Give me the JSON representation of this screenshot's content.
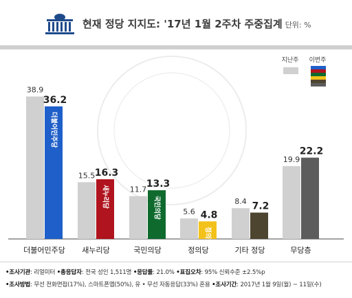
{
  "chart_data": {
    "type": "bar",
    "title": "현재 정당 지지도: '17년 1월 2주차 주중집계",
    "unit": "단위: %",
    "categories": [
      "더불어민주당",
      "새누리당",
      "국민의당",
      "정의당",
      "기타 정당",
      "무당층"
    ],
    "series": [
      {
        "name": "지난주",
        "values": [
          38.9,
          15.5,
          11.7,
          5.6,
          8.4,
          19.9
        ]
      },
      {
        "name": "이번주",
        "values": [
          36.2,
          16.3,
          13.3,
          4.8,
          7.2,
          22.2
        ]
      }
    ],
    "bar_labels": [
      "더불어민주당",
      "새누리당",
      "국민의당",
      "정의당",
      "",
      ""
    ],
    "colors": {
      "last_week": "#d0d0d0",
      "this_week": [
        "#1f5fc9",
        "#b0141e",
        "#0f6a2e",
        "#f3c21a",
        "#4e4530",
        "#5c5c5c"
      ],
      "axis": "#6a6a6a"
    },
    "legend_position": "top-right",
    "ylim": [
      0,
      45
    ]
  },
  "footer": {
    "line1": [
      {
        "key": "•조사기관",
        "val": ": 리얼미터 "
      },
      {
        "key": "•총응답자",
        "val": ": 전국 성인 1,511명 "
      },
      {
        "key": "•응답률",
        "val": ": 21.0% "
      },
      {
        "key": "•표집오차",
        "val": ": 95% 신뢰수준 ±2.5%p"
      }
    ],
    "line2": [
      {
        "key": "•조사방법",
        "val": ": 무선 전화면접(17%), 스마트폰앱(50%), 유 • 무선 자동응답(33%) 혼용 "
      },
      {
        "key": "•조사기간",
        "val": ": 2017년 1월 9일(월) ~ 11일(수)"
      }
    ]
  }
}
